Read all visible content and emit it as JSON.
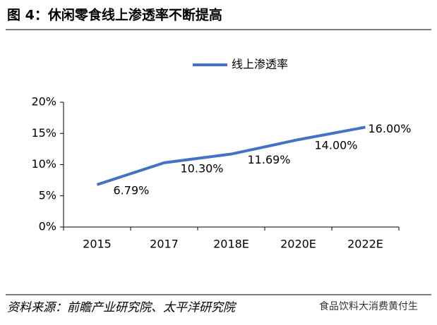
{
  "chart_data": {
    "type": "line",
    "title": "图 4：休闲零食线上渗透率不断提高",
    "categories": [
      "2015",
      "2017",
      "2018E",
      "2020E",
      "2022E"
    ],
    "series": [
      {
        "name": "线上渗透率",
        "color": "#4472c4",
        "values": [
          6.79,
          10.3,
          11.69,
          14.0,
          16.0
        ],
        "value_labels": [
          "6.79%",
          "10.30%",
          "11.69%",
          "14.00%",
          "16.00%"
        ]
      }
    ],
    "ylim": [
      0,
      20
    ],
    "yticks": [
      {
        "value": 0,
        "label": "0%"
      },
      {
        "value": 5,
        "label": "5%"
      },
      {
        "value": 10,
        "label": "10%"
      },
      {
        "value": 15,
        "label": "15%"
      },
      {
        "value": 20,
        "label": "20%"
      }
    ],
    "legend": "top",
    "source": "资料来源：前瞻产业研究院、太平洋研究院",
    "watermark": "食品饮料大消费黄付生"
  }
}
